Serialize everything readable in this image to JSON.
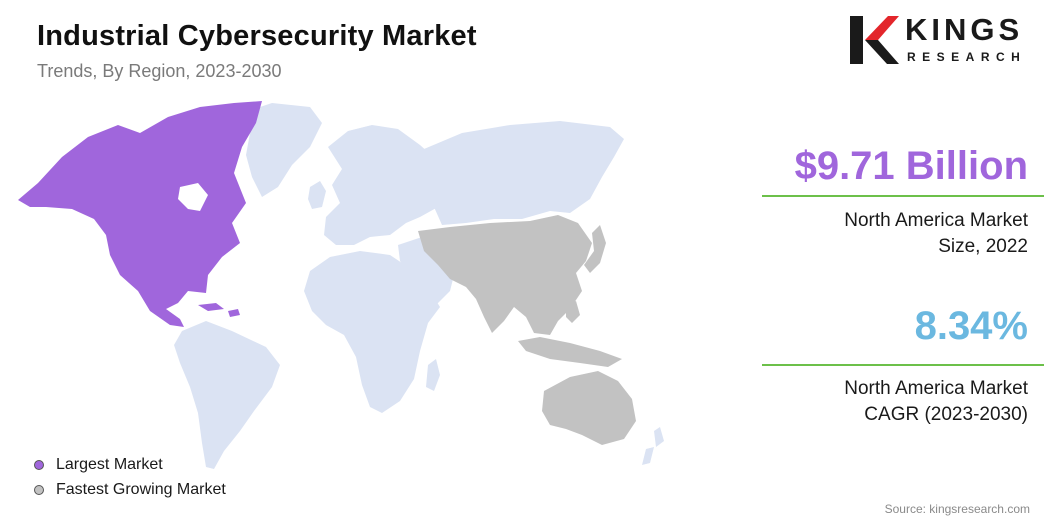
{
  "header": {
    "title": "Industrial Cybersecurity Market",
    "subtitle": "Trends, By Region, 2023-2030"
  },
  "logo": {
    "brand": "KINGS",
    "tagline": "RESEARCH"
  },
  "chart_data": {
    "type": "map",
    "title": "Industrial Cybersecurity Market",
    "subtitle": "Trends, By Region, 2023-2030",
    "regions": [
      {
        "name": "North America",
        "category": "Largest Market",
        "color": "#a066dc"
      },
      {
        "name": "Asia-Pacific",
        "category": "Fastest Growing Market",
        "color": "#c2c2c2"
      },
      {
        "name": "Europe",
        "category": "",
        "color": "#dbe3f3"
      },
      {
        "name": "South America",
        "category": "",
        "color": "#dbe3f3"
      },
      {
        "name": "Middle East & Africa",
        "category": "",
        "color": "#dbe3f3"
      }
    ],
    "legend": [
      {
        "label": "Largest Market",
        "color": "#a066dc"
      },
      {
        "label": "Fastest Growing Market",
        "color": "#c2c2c2"
      }
    ],
    "legend_position": "bottom-left"
  },
  "stats": [
    {
      "value": "$9.71 Billion",
      "label_line1": "North America Market",
      "label_line2": "Size, 2022",
      "color": "#a066dc"
    },
    {
      "value": "8.34%",
      "label_line1": "North America Market",
      "label_line2": "CAGR (2023-2030)",
      "color": "#6bb8e0"
    }
  ],
  "source": "Source: kingsresearch.com",
  "colors": {
    "largest": "#a066dc",
    "fastest": "#c2c2c2",
    "other": "#dbe3f3",
    "rule": "#6cc04a",
    "logo_red": "#e3262b"
  }
}
